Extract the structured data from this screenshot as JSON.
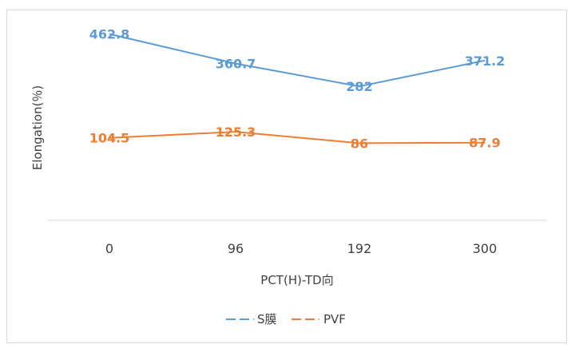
{
  "chart_data": {
    "type": "line",
    "categories": [
      "0",
      "96",
      "192",
      "300"
    ],
    "series": [
      {
        "name": "S膜",
        "values": [
          462.8,
          360.7,
          282,
          371.2
        ],
        "labels": [
          "462.8",
          "360.7",
          "282",
          "371.2"
        ],
        "color": "#5B9BD5"
      },
      {
        "name": "PVF",
        "values": [
          104.5,
          125.3,
          86,
          87.9
        ],
        "labels": [
          "104.5",
          "125.3",
          "86",
          "87.9"
        ],
        "color": "#ED7D31"
      }
    ],
    "title": "",
    "xlabel": "PCT(H)-TD向",
    "ylabel": "Elongation(％)",
    "ylim": [
      -180,
      580
    ],
    "grid": false,
    "legend": "bottom"
  }
}
